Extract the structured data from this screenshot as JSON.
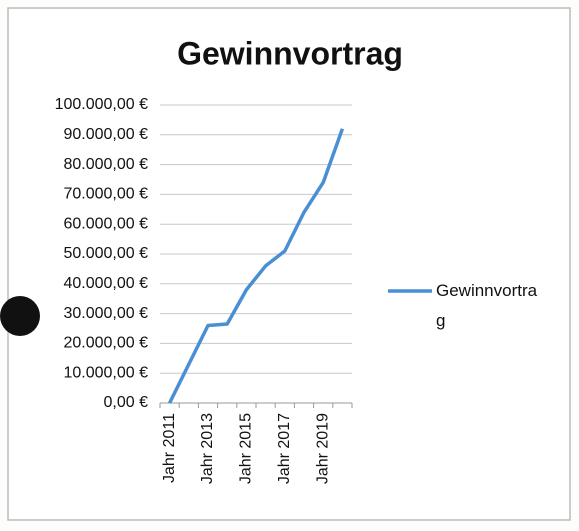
{
  "chart_data": {
    "type": "line",
    "title": "Gewinnvortrag",
    "categories": [
      "Jahr 2011",
      null,
      "Jahr 2013",
      null,
      "Jahr 2015",
      null,
      "Jahr 2017",
      null,
      "Jahr 2019",
      null
    ],
    "series": [
      {
        "name": "Gewinnvortrag",
        "color": "#4a8fd4",
        "values": [
          0,
          13000,
          26000,
          26500,
          38000,
          46000,
          51000,
          64000,
          74000,
          92000
        ]
      }
    ],
    "ylim": [
      0,
      100000
    ],
    "yticks": [
      {
        "value": 0,
        "label": "0,00 €"
      },
      {
        "value": 10000,
        "label": "10.000,00 €"
      },
      {
        "value": 20000,
        "label": "20.000,00 €"
      },
      {
        "value": 30000,
        "label": "30.000,00 €"
      },
      {
        "value": 40000,
        "label": "40.000,00 €"
      },
      {
        "value": 50000,
        "label": "50.000,00 €"
      },
      {
        "value": 60000,
        "label": "60.000,00 €"
      },
      {
        "value": 70000,
        "label": "70.000,00 €"
      },
      {
        "value": 80000,
        "label": "80.000,00 €"
      },
      {
        "value": 90000,
        "label": "90.000,00 €"
      },
      {
        "value": 100000,
        "label": "100.000,00 €"
      }
    ],
    "grid": true,
    "legend": "right"
  }
}
